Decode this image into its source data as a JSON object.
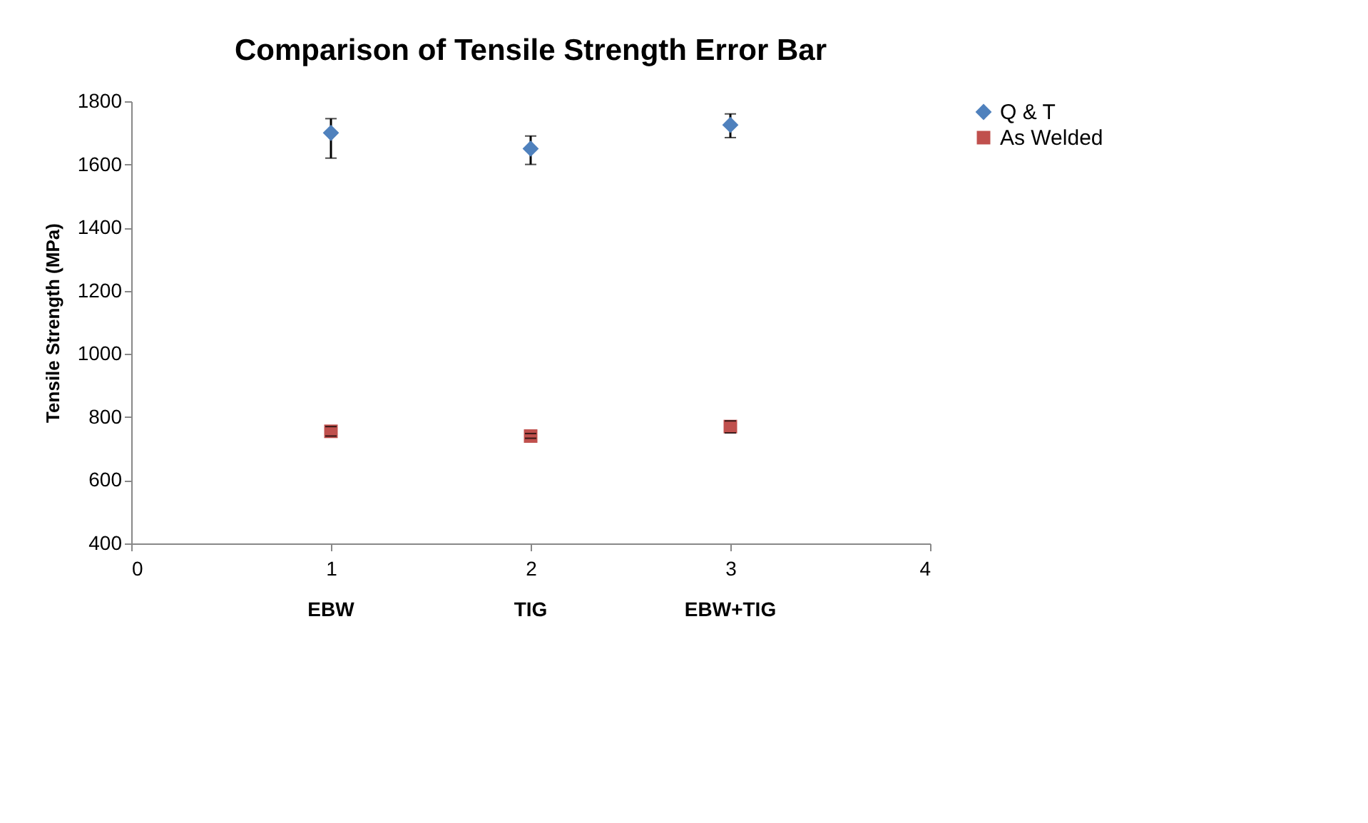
{
  "chart_data": {
    "type": "scatter",
    "title": "Comparison  of Tensile Strength Error Bar",
    "ylabel": "Tensile Strength (MPa)",
    "x": [
      1,
      2,
      3
    ],
    "series": [
      {
        "name": "Q & T",
        "color": "#4f81bd",
        "marker": "diamond",
        "values": [
          1700,
          1650,
          1725
        ],
        "errors": [
          [
            1620,
            1745
          ],
          [
            1600,
            1690
          ],
          [
            1685,
            1760
          ]
        ]
      },
      {
        "name": "As Welded",
        "color": "#c0504d",
        "marker": "square",
        "values": [
          755,
          740,
          770
        ],
        "errors": [
          [
            740,
            770
          ],
          [
            733,
            748
          ],
          [
            750,
            788
          ]
        ]
      }
    ],
    "xlim": [
      0,
      4
    ],
    "xticks": [
      0,
      1,
      2,
      3,
      4
    ],
    "ylim": [
      400,
      1800
    ],
    "yticks": [
      400,
      600,
      800,
      1000,
      1200,
      1400,
      1600,
      1800
    ],
    "annotations": [
      "EBW",
      "TIG",
      "EBW+TIG"
    ],
    "grid": false,
    "legend": "right"
  }
}
